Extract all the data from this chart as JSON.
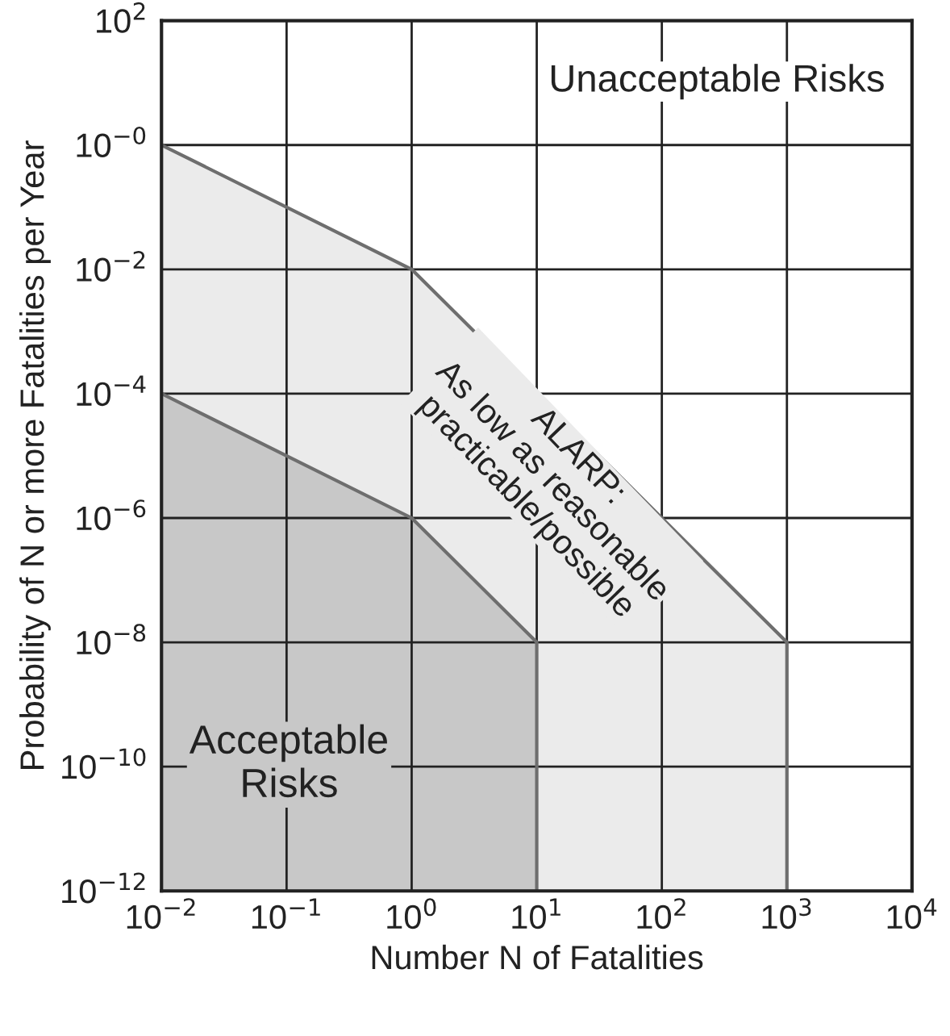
{
  "chart_data": {
    "type": "area",
    "log": "xy",
    "xlabel": "Number N of Fatalities",
    "ylabel": "Probability of N or more Fatalities per Year",
    "series": [
      {
        "x": [
          0.01,
          1,
          1000,
          1000
        ],
        "values": [
          1,
          0.01,
          1e-08,
          1e-12
        ],
        "color": "#ebebeb"
      },
      {
        "x": [
          0.01,
          1,
          10,
          10
        ],
        "values": [
          0.0001,
          1e-06,
          1e-08,
          1e-12
        ],
        "color": "#c8c8c8"
      }
    ],
    "xlim": [
      0.01,
      10000
    ],
    "ylim": [
      1e-12,
      100
    ],
    "xticks": [
      {
        "value": 0.01,
        "label": "10$^{−2}$"
      },
      {
        "value": 0.1,
        "label": "10$^{−1}$"
      },
      {
        "value": 1,
        "label": "10$^{0}$"
      },
      {
        "value": 10,
        "label": "10$^{1}$"
      },
      {
        "value": 100,
        "label": "10$^{2}$"
      },
      {
        "value": 1000,
        "label": "10$^{3}$"
      },
      {
        "value": 10000,
        "label": "10$^{4}$"
      }
    ],
    "yticks": [
      {
        "value": 1e-12,
        "label": "10$^{−12}$"
      },
      {
        "value": 1e-10,
        "label": "10$^{−10}$"
      },
      {
        "value": 1e-08,
        "label": "10$^{−8}$"
      },
      {
        "value": 1e-06,
        "label": "10$^{−6}$"
      },
      {
        "value": 0.0001,
        "label": "10$^{−4}$"
      },
      {
        "value": 0.01,
        "label": "10$^{−2}$"
      },
      {
        "value": 1,
        "label": "10$^{−0}$"
      },
      {
        "value": 100,
        "label": "10$^{2}$"
      }
    ],
    "grid": true,
    "annotations": [
      "Unacceptable Risks",
      "ALARP:\nAs low as reasonable\npracticable/possible",
      "Acceptable\nRisks"
    ]
  }
}
